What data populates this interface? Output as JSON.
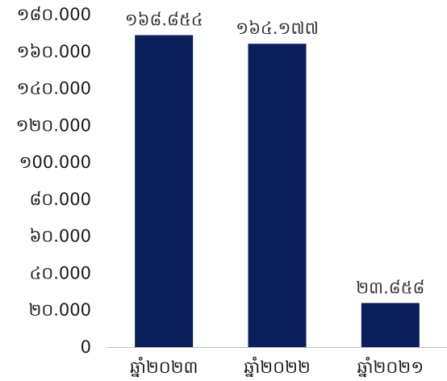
{
  "chart_data": {
    "type": "bar",
    "categories": [
      "ឆ្នាំ២០២៣",
      "ឆ្នាំ២០២២",
      "ឆ្នាំ២០២១"
    ],
    "values": [
      168854,
      164177,
      23858
    ],
    "value_labels": [
      "១៦៨.៨៥៤",
      "១៦៤.១៧៧",
      "២៣.៨៥៨"
    ],
    "ylim": [
      0,
      180000
    ],
    "y_ticks": [
      0,
      20000,
      40000,
      60000,
      80000,
      100000,
      120000,
      140000,
      160000,
      180000
    ],
    "y_tick_labels": [
      "0",
      "២០.000",
      "៤០.000",
      "៦០.000",
      "៨០.000",
      "១00.000",
      "១២០.000",
      "១៤០.000",
      "១៦០.000",
      "១៨០.000"
    ],
    "title": "",
    "xlabel": "",
    "ylabel": "",
    "grid": false,
    "legend": "none",
    "bar_color": "#0b1f5c",
    "axis_color": "#bfbfbf"
  }
}
